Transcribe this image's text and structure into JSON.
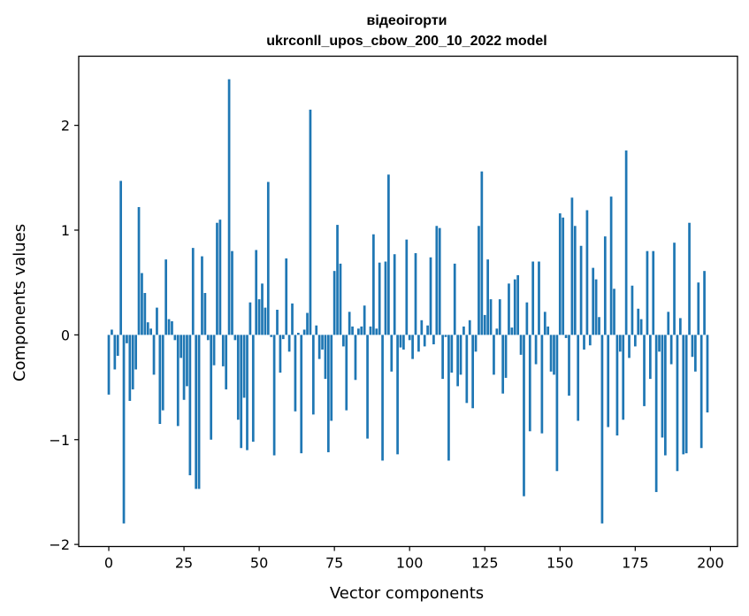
{
  "chart_data": {
    "type": "bar",
    "title": "відеоігорти",
    "subtitle": "ukrconll_upos_cbow_200_10_2022 model",
    "xlabel": "Vector components",
    "ylabel": "Components values",
    "xlim": [
      -10,
      209
    ],
    "ylim": [
      -2.02,
      2.66
    ],
    "xticks": [
      0,
      25,
      50,
      75,
      100,
      125,
      150,
      175,
      200
    ],
    "xtick_labels": [
      "0",
      "25",
      "50",
      "75",
      "100",
      "125",
      "150",
      "175",
      "200"
    ],
    "yticks": [
      -2,
      -1,
      0,
      1,
      2
    ],
    "ytick_labels": [
      "−2",
      "−1",
      "0",
      "1",
      "2"
    ],
    "grid": false,
    "bar_color": "#1f77b4",
    "values": [
      -0.57,
      0.05,
      -0.33,
      -0.2,
      1.47,
      -1.8,
      -0.08,
      -0.63,
      -0.52,
      -0.33,
      1.22,
      0.59,
      0.4,
      0.12,
      0.06,
      -0.38,
      0.26,
      -0.85,
      -0.72,
      0.72,
      0.15,
      0.13,
      -0.05,
      -0.87,
      -0.22,
      -0.62,
      -0.49,
      -1.34,
      0.83,
      -1.47,
      -1.47,
      0.75,
      0.4,
      -0.05,
      -1.0,
      -0.29,
      1.07,
      1.1,
      -0.3,
      -0.52,
      2.44,
      0.8,
      -0.05,
      -0.81,
      -1.08,
      -0.6,
      -1.1,
      0.31,
      -1.02,
      0.81,
      0.34,
      0.49,
      0.26,
      1.46,
      -0.02,
      -1.15,
      0.24,
      -0.36,
      -0.04,
      0.73,
      -0.16,
      0.3,
      -0.73,
      0.02,
      -1.13,
      0.05,
      0.21,
      2.15,
      -0.76,
      0.09,
      -0.23,
      -0.14,
      -0.42,
      -1.12,
      -0.82,
      0.61,
      1.05,
      0.68,
      -0.11,
      -0.72,
      0.22,
      0.08,
      -0.43,
      0.06,
      0.08,
      0.28,
      -0.99,
      0.08,
      0.96,
      0.06,
      0.69,
      -1.2,
      0.7,
      1.53,
      -0.35,
      0.77,
      -1.14,
      -0.12,
      -0.14,
      0.91,
      -0.05,
      -0.23,
      0.78,
      -0.16,
      0.14,
      -0.11,
      0.09,
      0.74,
      -0.09,
      1.04,
      1.02,
      -0.42,
      -0.02,
      -1.2,
      -0.36,
      0.68,
      -0.49,
      -0.38,
      0.08,
      -0.65,
      0.14,
      -0.7,
      -0.16,
      1.04,
      1.56,
      0.19,
      0.72,
      0.34,
      -0.38,
      0.06,
      0.34,
      -0.56,
      -0.41,
      0.49,
      0.07,
      0.53,
      0.57,
      -0.19,
      -1.54,
      0.31,
      -0.92,
      0.7,
      -0.28,
      0.7,
      -0.94,
      0.22,
      0.08,
      -0.35,
      -0.38,
      -1.3,
      1.16,
      1.12,
      -0.03,
      -0.58,
      1.31,
      1.04,
      -0.82,
      0.85,
      -0.14,
      1.19,
      -0.1,
      0.64,
      0.53,
      0.17,
      -1.8,
      0.94,
      -0.88,
      1.32,
      0.44,
      -0.96,
      -0.16,
      -0.81,
      1.76,
      -0.22,
      0.47,
      -0.11,
      0.25,
      0.15,
      -0.68,
      0.8,
      -0.42,
      0.8,
      -1.5,
      -0.16,
      -0.98,
      -1.15,
      0.22,
      -0.28,
      0.88,
      -1.3,
      0.16,
      -1.14,
      -1.13,
      1.07,
      -0.21,
      -0.35,
      0.5,
      -1.08,
      0.61,
      -0.74
    ]
  }
}
